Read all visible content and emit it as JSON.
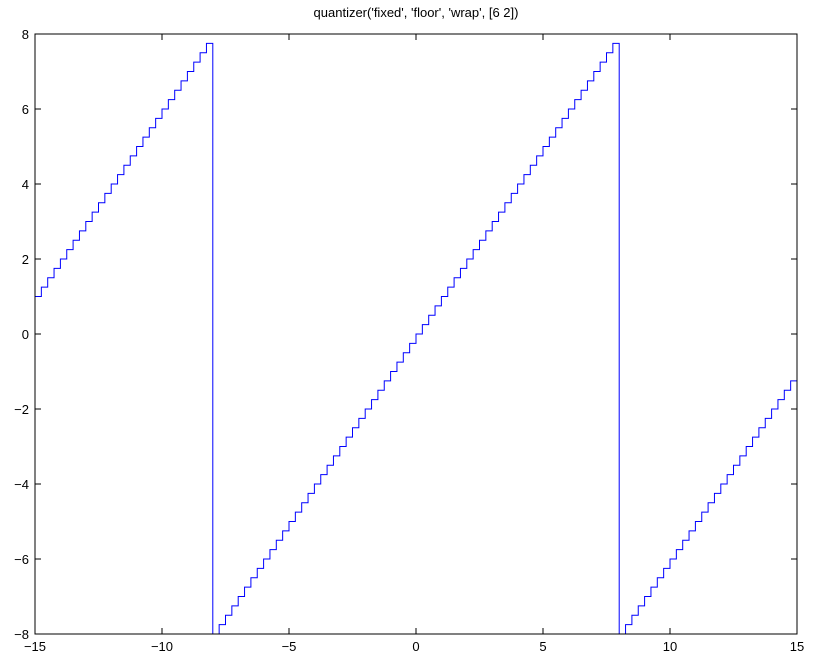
{
  "chart_data": {
    "type": "line",
    "title": "quantizer('fixed', 'floor', 'wrap', [6  2])",
    "xlabel": "",
    "ylabel": "",
    "xlim": [
      -15,
      15
    ],
    "ylim": [
      -8,
      8
    ],
    "x_ticks": [
      -15,
      -10,
      -5,
      0,
      5,
      10,
      15
    ],
    "y_ticks": [
      -8,
      -6,
      -4,
      -2,
      0,
      2,
      4,
      6,
      8
    ],
    "x_tick_labels": [
      "−15",
      "−10",
      "−5",
      "0",
      "5",
      "10",
      "15"
    ],
    "y_tick_labels": [
      "−8",
      "−6",
      "−4",
      "−2",
      "0",
      "2",
      "4",
      "6",
      "8"
    ],
    "grid": false,
    "series": [
      {
        "color": "#0000ff",
        "step": 0.25,
        "rounding": "floor",
        "overflow": "wrap",
        "range": [
          -8,
          7.75
        ],
        "x_range": [
          -15,
          15
        ]
      }
    ]
  }
}
